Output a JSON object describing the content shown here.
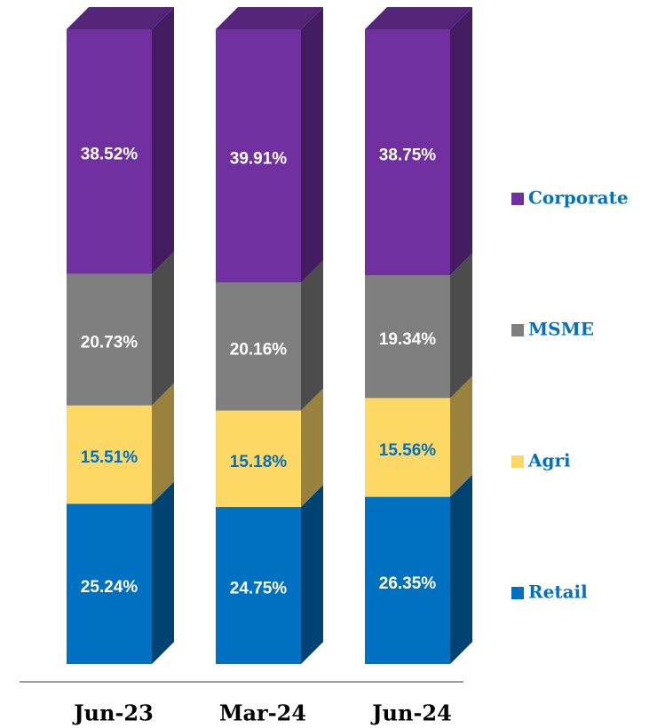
{
  "chart_data": {
    "type": "bar",
    "stacked": true,
    "categories": [
      "Jun-23",
      "Mar-24",
      "Jun-24"
    ],
    "series": [
      {
        "name": "Retail",
        "color": "#0070c0",
        "label_color": "#ffffff",
        "values": [
          25.24,
          24.75,
          26.35
        ],
        "value_labels": [
          "25.24%",
          "24.75%",
          "26.35%"
        ]
      },
      {
        "name": "Agri",
        "color": "#fdd865",
        "label_color": "#0070c0",
        "values": [
          15.51,
          15.18,
          15.56
        ],
        "value_labels": [
          "15.51%",
          "15.18%",
          "15.56%"
        ]
      },
      {
        "name": "MSME",
        "color": "#7f7f7f",
        "label_color": "#ffffff",
        "values": [
          20.73,
          20.16,
          19.34
        ],
        "value_labels": [
          "20.73%",
          "20.16%",
          "19.34%"
        ]
      },
      {
        "name": "Corporate",
        "color": "#7030a0",
        "label_color": "#ffffff",
        "values": [
          38.52,
          39.91,
          38.75
        ],
        "value_labels": [
          "38.52%",
          "39.91%",
          "38.75%"
        ]
      }
    ]
  }
}
